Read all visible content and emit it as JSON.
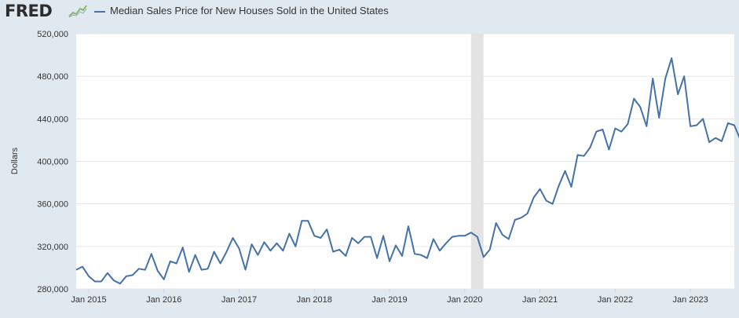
{
  "header": {
    "logo_text": "FRED",
    "logo_icon": "line-graph-icon",
    "legend_label": "Median Sales Price for New Houses Sold in the United States",
    "series_color": "#4572a7"
  },
  "chart_data": {
    "type": "line",
    "title": "",
    "xlabel": "",
    "ylabel": "Dollars",
    "ylim": [
      280000,
      520000
    ],
    "yticks": [
      280000,
      320000,
      360000,
      400000,
      440000,
      480000,
      520000
    ],
    "ytick_labels": [
      "280,000",
      "320,000",
      "360,000",
      "400,000",
      "440,000",
      "480,000",
      "520,000"
    ],
    "xticks": [
      "Jan 2015",
      "Jan 2016",
      "Jan 2017",
      "Jan 2018",
      "Jan 2019",
      "Jan 2020",
      "Jan 2021",
      "Jan 2022",
      "Jan 2023"
    ],
    "start": "2014-11",
    "end": "2023-08",
    "grid": true,
    "recession": {
      "start": "2020-02",
      "end": "2020-04"
    },
    "series": [
      {
        "name": "Median Sales Price for New Houses Sold in the United States",
        "values": [
          298000,
          301000,
          292000,
          287000,
          287000,
          295000,
          288000,
          285000,
          292000,
          293000,
          299000,
          298000,
          313000,
          297000,
          289000,
          306000,
          304000,
          319000,
          296000,
          312000,
          298000,
          299000,
          315000,
          304000,
          315000,
          328000,
          318000,
          298000,
          322000,
          312000,
          324000,
          316000,
          323000,
          316000,
          332000,
          320000,
          344000,
          344000,
          330000,
          328000,
          336000,
          315000,
          317000,
          311000,
          328000,
          323000,
          329000,
          329000,
          309000,
          330000,
          306000,
          321000,
          311000,
          339000,
          313000,
          312000,
          309000,
          327000,
          316000,
          323000,
          329000,
          330000,
          330000,
          333000,
          329000,
          310000,
          317000,
          342000,
          331000,
          327000,
          345000,
          347000,
          351000,
          366000,
          374000,
          363000,
          360000,
          377000,
          391000,
          376000,
          406000,
          405000,
          413000,
          428000,
          430000,
          411000,
          431000,
          428000,
          435000,
          459000,
          451000,
          433000,
          478000,
          441000,
          478000,
          497000,
          463000,
          480000,
          433000,
          434000,
          440000,
          418000,
          422000,
          419000,
          436000,
          434000,
          420000
        ]
      }
    ]
  }
}
